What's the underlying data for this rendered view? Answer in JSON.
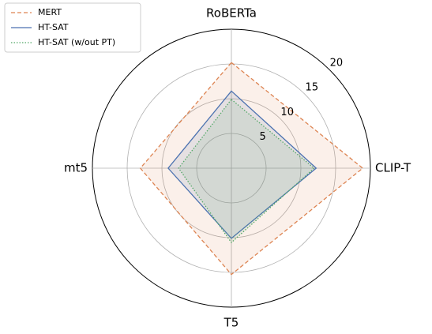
{
  "chart_data": {
    "type": "radar",
    "categories": [
      "RoBERTa",
      "CLIP-T",
      "T5",
      "mt5"
    ],
    "ylim": [
      0,
      20
    ],
    "yticks": [
      5,
      10,
      15,
      20
    ],
    "grid": true,
    "legend": "upper left",
    "series": [
      {
        "name": "MERT",
        "color": "#dd8452",
        "dash": "dashed",
        "values": [
          15.2,
          18.9,
          15.3,
          13.1
        ]
      },
      {
        "name": "HT-SAT",
        "color": "#4c72b0",
        "dash": "solid",
        "values": [
          11.1,
          12.2,
          10.1,
          9.1
        ]
      },
      {
        "name": "HT-SAT (w/out PT)",
        "color": "#55a868",
        "dash": "dotted",
        "values": [
          9.9,
          11.9,
          10.7,
          7.6
        ]
      }
    ]
  }
}
